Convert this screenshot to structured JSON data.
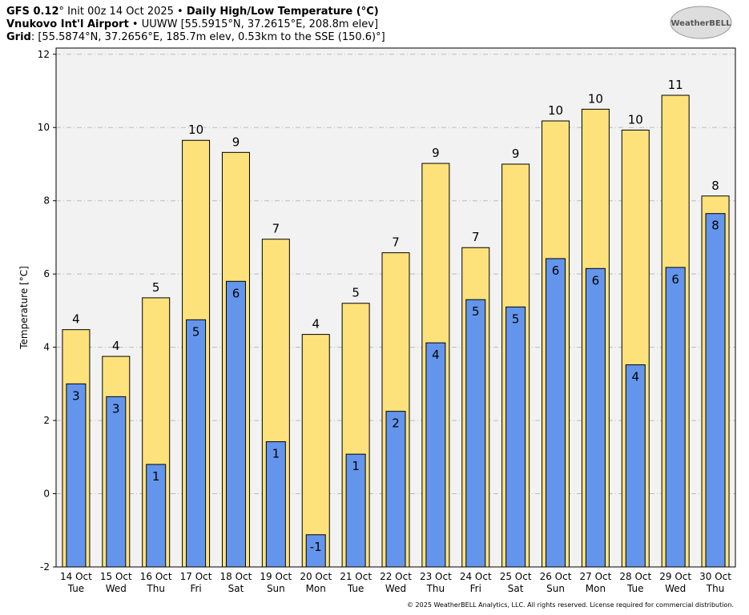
{
  "chart_data": {
    "type": "bar",
    "header": {
      "line1": [
        "GFS 0.12",
        "° Init 00z 14 Oct 2025 • ",
        "Daily High/Low Temperature (°C)"
      ],
      "line2": [
        "Vnukovo Int'l Airport",
        " • UUWW [55.5915°N, 37.2615°E, 208.8m elev]"
      ],
      "line3": [
        "Grid",
        ": [55.5874°N, 37.2656°E, 185.7m elev, 0.53km to the SSE (150.6)°]"
      ]
    },
    "logo": "WeatherBELL",
    "footer": "© 2025 WeatherBELL Analytics, LLC. All rights reserved. License required for commercial distribution.",
    "ylabel": "Temperature [°C]",
    "categories": [
      "14 Oct",
      "15 Oct",
      "16 Oct",
      "17 Oct",
      "18 Oct",
      "19 Oct",
      "20 Oct",
      "21 Oct",
      "22 Oct",
      "23 Oct",
      "24 Oct",
      "25 Oct",
      "26 Oct",
      "27 Oct",
      "28 Oct",
      "29 Oct",
      "30 Oct"
    ],
    "weekdays": [
      "Tue",
      "Wed",
      "Thu",
      "Fri",
      "Sat",
      "Sun",
      "Mon",
      "Tue",
      "Wed",
      "Thu",
      "Fri",
      "Sat",
      "Sun",
      "Mon",
      "Tue",
      "Wed",
      "Thu"
    ],
    "series": [
      {
        "color": "#fde27c",
        "values": [
          4.48,
          3.75,
          5.35,
          9.65,
          9.32,
          6.95,
          4.35,
          5.2,
          6.58,
          9.02,
          6.72,
          9.0,
          10.18,
          10.5,
          9.93,
          10.88,
          8.13
        ],
        "value_labels": [
          "4",
          "4",
          "5",
          "10",
          "9",
          "7",
          "4",
          "5",
          "7",
          "9",
          "7",
          "9",
          "10",
          "10",
          "10",
          "11",
          "8"
        ]
      },
      {
        "color": "#6495ed",
        "values": [
          3.0,
          2.65,
          0.8,
          4.75,
          5.8,
          1.42,
          -1.12,
          1.08,
          2.25,
          4.12,
          5.3,
          5.1,
          6.42,
          6.15,
          3.52,
          6.18,
          7.65
        ],
        "value_labels": [
          "3",
          "3",
          "1",
          "5",
          "6",
          "1",
          "-1",
          "1",
          "2",
          "4",
          "5",
          "5",
          "6",
          "6",
          "4",
          "6",
          "8"
        ]
      }
    ],
    "ylim": [
      -2,
      12.17
    ],
    "yticks": [
      -2,
      0,
      2,
      4,
      6,
      8,
      10,
      12
    ],
    "grid": true
  }
}
